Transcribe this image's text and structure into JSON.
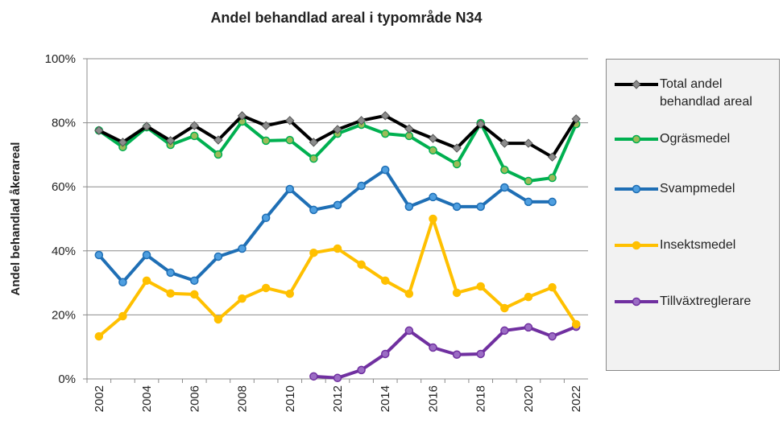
{
  "chart_data": {
    "type": "line",
    "title": "Andel behandlad areal i typområde N34",
    "y_label": "Andel behandlad åkerareal",
    "categories": [
      "2002",
      null,
      "2004",
      null,
      "2006",
      null,
      "2008",
      null,
      "2010",
      null,
      "2012",
      null,
      "2014",
      null,
      "2016",
      null,
      "2018",
      null,
      "2020",
      null,
      "2022"
    ],
    "ylim": [
      0,
      100
    ],
    "yticks": [
      {
        "value": 0,
        "label": "0%"
      },
      {
        "value": 20,
        "label": "20%"
      },
      {
        "value": 40,
        "label": "40%"
      },
      {
        "value": 60,
        "label": "60%"
      },
      {
        "value": 80,
        "label": "80%"
      },
      {
        "value": 100,
        "label": "100%"
      }
    ],
    "grid": true,
    "legend": "right",
    "series": [
      {
        "name": "Total andel behandlad areal",
        "color": "#000000",
        "marker": "diamond",
        "marker_color": "#8c8c8c",
        "values": [
          77.6,
          73.9,
          78.9,
          74.4,
          79.1,
          74.6,
          82.2,
          79.1,
          80.7,
          73.9,
          77.9,
          80.7,
          82.2,
          78.1,
          75.1,
          72.1,
          79.6,
          73.6,
          73.6,
          69.3,
          81.2
        ]
      },
      {
        "name": "Ogräsmedel",
        "color": "#00b050",
        "marker": "circle",
        "marker_color": "#9bbb59",
        "values": [
          77.6,
          72.4,
          78.6,
          73.1,
          75.9,
          70.1,
          80.4,
          74.4,
          74.6,
          68.8,
          76.6,
          79.4,
          76.6,
          75.9,
          71.4,
          67.1,
          79.9,
          65.3,
          61.8,
          62.8,
          79.6
        ]
      },
      {
        "name": "Svampmedel",
        "color": "#1f6fb5",
        "marker": "circle",
        "marker_color": "#4f9fe0",
        "values": [
          38.7,
          30.2,
          38.7,
          33.2,
          30.7,
          38.2,
          40.7,
          50.3,
          59.3,
          52.8,
          54.3,
          60.3,
          65.3,
          53.8,
          56.8,
          53.8,
          53.8,
          59.8,
          55.3,
          55.3,
          null
        ]
      },
      {
        "name": "Insektsmedel",
        "color": "#ffc000",
        "marker": "circle",
        "marker_color": "#ffc000",
        "values": [
          13.3,
          19.6,
          30.7,
          26.7,
          26.4,
          18.6,
          25.1,
          28.4,
          26.6,
          39.4,
          40.7,
          35.7,
          30.7,
          26.6,
          50.0,
          26.9,
          28.9,
          22.1,
          25.6,
          28.6,
          17.1
        ]
      },
      {
        "name": "Tillväxtreglerare",
        "color": "#7030a0",
        "marker": "circle",
        "marker_color": "#9b6cc4",
        "values": [
          null,
          null,
          null,
          null,
          null,
          null,
          null,
          null,
          null,
          0.8,
          0.3,
          2.8,
          7.8,
          15.1,
          9.8,
          7.6,
          7.8,
          15.1,
          16.1,
          13.3,
          16.3
        ]
      }
    ]
  }
}
